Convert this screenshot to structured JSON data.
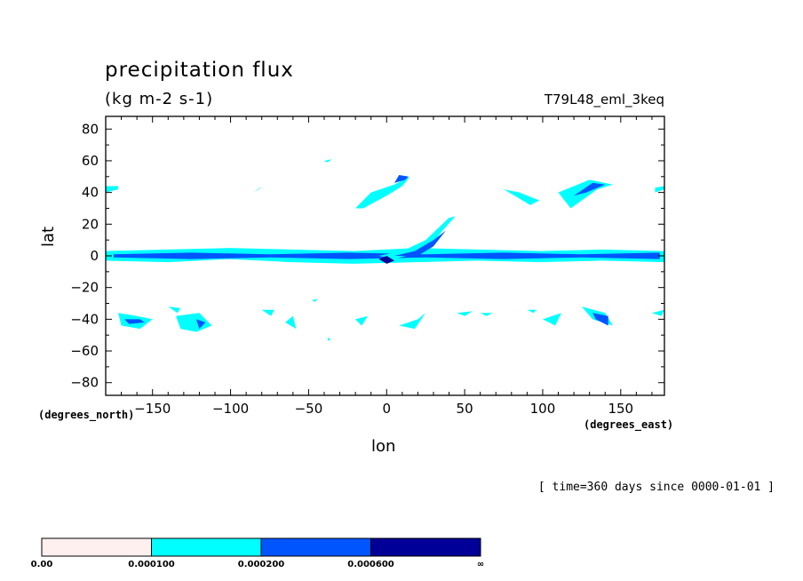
{
  "header": {
    "title": "precipitation flux",
    "units": "(kg m-2 s-1)",
    "run_name": "T79L48_eml_3keq",
    "time_note": "[ time=360 days since 0000-01-01 ]",
    "lat_unit": "(degrees_north)",
    "lon_unit": "(degrees_east)"
  },
  "colors": {
    "level1": "#fff0f0",
    "level2": "#00ffff",
    "level3": "#0055ff",
    "level4": "#000099",
    "frame": "#000000"
  },
  "chart_data": {
    "type": "heatmap",
    "title": "precipitation flux",
    "subtitle": "(kg m-2 s-1)",
    "xlabel": "lon",
    "ylabel": "lat",
    "xlim": [
      -180,
      178
    ],
    "ylim": [
      -88,
      88
    ],
    "x_ticks": [
      -150,
      -100,
      -50,
      0,
      50,
      100,
      150
    ],
    "x_tick_labels": [
      "−150",
      "−100",
      "−50",
      "0",
      "50",
      "100",
      "150"
    ],
    "y_ticks": [
      -80,
      -60,
      -40,
      -20,
      0,
      20,
      40,
      60,
      80
    ],
    "y_tick_labels": [
      "−80",
      "−60",
      "−40",
      "−20",
      "0",
      "20",
      "40",
      "60",
      "80"
    ],
    "colorbar": {
      "levels": [
        "0.00",
        "0.000100",
        "0.000200",
        "0.000600",
        "∞"
      ],
      "colors": [
        "#fff0f0",
        "#00ffff",
        "#0055ff",
        "#000099"
      ]
    },
    "features": [
      {
        "level": 1,
        "kind": "band",
        "lon": [
          -180,
          178
        ],
        "lat_top": [
          3,
          4,
          5,
          4,
          3,
          5,
          4,
          3,
          4,
          3
        ],
        "lat_bot": [
          -3,
          -4,
          -2,
          -4,
          -5,
          -4,
          -3,
          -4,
          -3,
          -4
        ]
      },
      {
        "level": 2,
        "kind": "band",
        "lon": [
          -175,
          175
        ],
        "lat_top": [
          1,
          2,
          1,
          2,
          1,
          2,
          1,
          2
        ],
        "lat_bot": [
          -1,
          -2,
          -1,
          -2,
          -1,
          -2,
          -1,
          -2
        ]
      },
      {
        "level": 1,
        "kind": "poly",
        "pts": [
          [
            -5,
            0
          ],
          [
            10,
            3
          ],
          [
            25,
            10
          ],
          [
            40,
            24
          ],
          [
            44,
            25
          ],
          [
            35,
            15
          ],
          [
            28,
            6
          ],
          [
            20,
            2
          ],
          [
            5,
            -2
          ]
        ]
      },
      {
        "level": 2,
        "kind": "poly",
        "pts": [
          [
            5,
            0
          ],
          [
            18,
            3
          ],
          [
            30,
            10
          ],
          [
            38,
            16
          ],
          [
            30,
            6
          ],
          [
            20,
            0
          ]
        ]
      },
      {
        "level": 3,
        "kind": "poly",
        "pts": [
          [
            -5,
            -2
          ],
          [
            0,
            -5
          ],
          [
            5,
            -3
          ],
          [
            0,
            0
          ]
        ]
      },
      {
        "level": 1,
        "kind": "poly",
        "pts": [
          [
            -20,
            30
          ],
          [
            -10,
            40
          ],
          [
            5,
            45
          ],
          [
            15,
            50
          ],
          [
            10,
            44
          ],
          [
            0,
            38
          ],
          [
            -15,
            30
          ]
        ]
      },
      {
        "level": 2,
        "kind": "poly",
        "pts": [
          [
            5,
            46
          ],
          [
            12,
            48
          ],
          [
            14,
            50
          ],
          [
            8,
            51
          ]
        ]
      },
      {
        "level": 1,
        "kind": "poly",
        "pts": [
          [
            110,
            40
          ],
          [
            130,
            48
          ],
          [
            145,
            45
          ],
          [
            135,
            42
          ],
          [
            125,
            35
          ],
          [
            118,
            30
          ]
        ]
      },
      {
        "level": 2,
        "kind": "poly",
        "pts": [
          [
            120,
            38
          ],
          [
            132,
            46
          ],
          [
            140,
            45
          ],
          [
            128,
            40
          ]
        ]
      },
      {
        "level": 1,
        "kind": "poly",
        "pts": [
          [
            75,
            42
          ],
          [
            85,
            40
          ],
          [
            98,
            35
          ],
          [
            92,
            32
          ],
          [
            82,
            38
          ]
        ]
      },
      {
        "level": 1,
        "kind": "poly",
        "pts": [
          [
            -180,
            40
          ],
          [
            -172,
            42
          ],
          [
            -172,
            44
          ],
          [
            -180,
            44
          ]
        ]
      },
      {
        "level": 1,
        "kind": "poly",
        "pts": [
          [
            172,
            40
          ],
          [
            178,
            42
          ],
          [
            178,
            44
          ],
          [
            172,
            43
          ]
        ]
      },
      {
        "level": 1,
        "kind": "poly",
        "pts": [
          [
            -85,
            40
          ],
          [
            -80,
            44
          ],
          [
            -78,
            46
          ],
          [
            -82,
            42
          ]
        ]
      },
      {
        "level": 1,
        "kind": "poly",
        "pts": [
          [
            -40,
            60
          ],
          [
            -35,
            61
          ],
          [
            -38,
            59
          ]
        ]
      },
      {
        "level": 1,
        "kind": "poly",
        "pts": [
          [
            -172,
            -36
          ],
          [
            -160,
            -38
          ],
          [
            -150,
            -40
          ],
          [
            -158,
            -46
          ],
          [
            -170,
            -44
          ]
        ]
      },
      {
        "level": 2,
        "kind": "poly",
        "pts": [
          [
            -168,
            -40
          ],
          [
            -158,
            -40
          ],
          [
            -155,
            -42
          ],
          [
            -165,
            -43
          ]
        ]
      },
      {
        "level": 1,
        "kind": "poly",
        "pts": [
          [
            -135,
            -38
          ],
          [
            -120,
            -36
          ],
          [
            -112,
            -44
          ],
          [
            -122,
            -48
          ],
          [
            -132,
            -46
          ]
        ]
      },
      {
        "level": 2,
        "kind": "poly",
        "pts": [
          [
            -122,
            -40
          ],
          [
            -116,
            -42
          ],
          [
            -120,
            -46
          ]
        ]
      },
      {
        "level": 1,
        "kind": "poly",
        "pts": [
          [
            -140,
            -32
          ],
          [
            -132,
            -33
          ],
          [
            -134,
            -36
          ]
        ]
      },
      {
        "level": 1,
        "kind": "poly",
        "pts": [
          [
            -80,
            -34
          ],
          [
            -72,
            -34
          ],
          [
            -74,
            -38
          ]
        ]
      },
      {
        "level": 1,
        "kind": "poly",
        "pts": [
          [
            -65,
            -42
          ],
          [
            -60,
            -38
          ],
          [
            -58,
            -46
          ]
        ]
      },
      {
        "level": 1,
        "kind": "poly",
        "pts": [
          [
            -20,
            -40
          ],
          [
            -12,
            -38
          ],
          [
            -16,
            -44
          ]
        ]
      },
      {
        "level": 1,
        "kind": "poly",
        "pts": [
          [
            8,
            -44
          ],
          [
            20,
            -40
          ],
          [
            25,
            -36
          ],
          [
            18,
            -46
          ]
        ]
      },
      {
        "level": 1,
        "kind": "poly",
        "pts": [
          [
            45,
            -36
          ],
          [
            55,
            -35
          ],
          [
            50,
            -38
          ]
        ]
      },
      {
        "level": 1,
        "kind": "poly",
        "pts": [
          [
            60,
            -36
          ],
          [
            68,
            -36
          ],
          [
            64,
            -38
          ]
        ]
      },
      {
        "level": 1,
        "kind": "poly",
        "pts": [
          [
            90,
            -34
          ],
          [
            96,
            -34
          ],
          [
            94,
            -36
          ]
        ]
      },
      {
        "level": 1,
        "kind": "poly",
        "pts": [
          [
            100,
            -40
          ],
          [
            112,
            -36
          ],
          [
            108,
            -44
          ]
        ]
      },
      {
        "level": 1,
        "kind": "poly",
        "pts": [
          [
            125,
            -32
          ],
          [
            140,
            -36
          ],
          [
            145,
            -44
          ],
          [
            132,
            -40
          ]
        ]
      },
      {
        "level": 2,
        "kind": "poly",
        "pts": [
          [
            132,
            -36
          ],
          [
            142,
            -38
          ],
          [
            142,
            -44
          ],
          [
            134,
            -40
          ]
        ]
      },
      {
        "level": 1,
        "kind": "poly",
        "pts": [
          [
            170,
            -36
          ],
          [
            178,
            -34
          ],
          [
            176,
            -38
          ]
        ]
      },
      {
        "level": 1,
        "kind": "poly",
        "pts": [
          [
            -48,
            -28
          ],
          [
            -44,
            -27
          ],
          [
            -46,
            -29
          ]
        ]
      },
      {
        "level": 1,
        "kind": "poly",
        "pts": [
          [
            -38,
            -52
          ],
          [
            -36,
            -52
          ],
          [
            -37,
            -54
          ]
        ]
      }
    ]
  }
}
